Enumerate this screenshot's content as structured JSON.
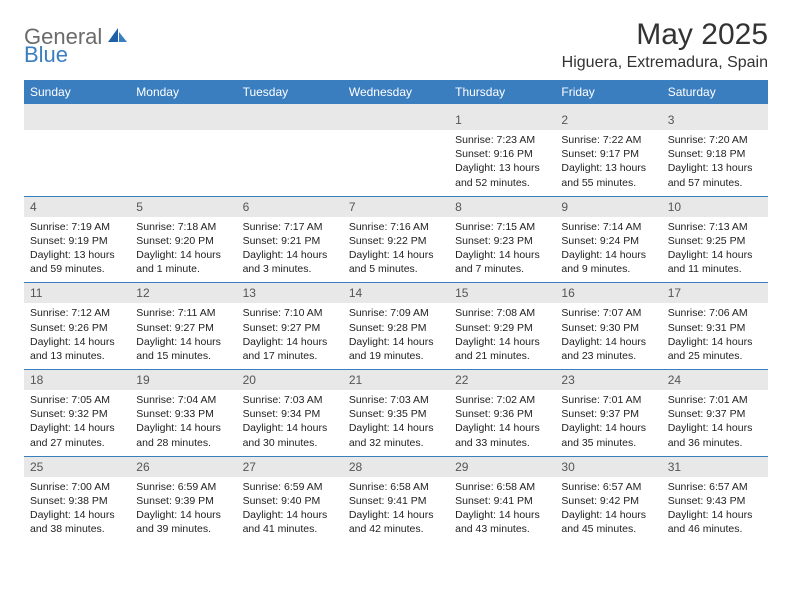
{
  "brand": {
    "general": "General",
    "blue": "Blue"
  },
  "title": "May 2025",
  "location": "Higuera, Extremadura, Spain",
  "colors": {
    "header_bg": "#3a7ebf",
    "header_text": "#ffffff",
    "daynum_bg": "#e8e8e8",
    "daynum_text": "#555555",
    "body_text": "#222222",
    "logo_gray": "#6b6b6b",
    "logo_blue": "#3a7ebf",
    "row_divider": "#3a7ebf"
  },
  "typography": {
    "title_fontsize": 30,
    "location_fontsize": 16,
    "weekday_fontsize": 12,
    "daynum_fontsize": 12,
    "detail_fontsize": 10.5
  },
  "weekdays": [
    "Sunday",
    "Monday",
    "Tuesday",
    "Wednesday",
    "Thursday",
    "Friday",
    "Saturday"
  ],
  "weeks": [
    [
      null,
      null,
      null,
      null,
      {
        "n": "1",
        "sr": "Sunrise: 7:23 AM",
        "ss": "Sunset: 9:16 PM",
        "d1": "Daylight: 13 hours",
        "d2": "and 52 minutes."
      },
      {
        "n": "2",
        "sr": "Sunrise: 7:22 AM",
        "ss": "Sunset: 9:17 PM",
        "d1": "Daylight: 13 hours",
        "d2": "and 55 minutes."
      },
      {
        "n": "3",
        "sr": "Sunrise: 7:20 AM",
        "ss": "Sunset: 9:18 PM",
        "d1": "Daylight: 13 hours",
        "d2": "and 57 minutes."
      }
    ],
    [
      {
        "n": "4",
        "sr": "Sunrise: 7:19 AM",
        "ss": "Sunset: 9:19 PM",
        "d1": "Daylight: 13 hours",
        "d2": "and 59 minutes."
      },
      {
        "n": "5",
        "sr": "Sunrise: 7:18 AM",
        "ss": "Sunset: 9:20 PM",
        "d1": "Daylight: 14 hours",
        "d2": "and 1 minute."
      },
      {
        "n": "6",
        "sr": "Sunrise: 7:17 AM",
        "ss": "Sunset: 9:21 PM",
        "d1": "Daylight: 14 hours",
        "d2": "and 3 minutes."
      },
      {
        "n": "7",
        "sr": "Sunrise: 7:16 AM",
        "ss": "Sunset: 9:22 PM",
        "d1": "Daylight: 14 hours",
        "d2": "and 5 minutes."
      },
      {
        "n": "8",
        "sr": "Sunrise: 7:15 AM",
        "ss": "Sunset: 9:23 PM",
        "d1": "Daylight: 14 hours",
        "d2": "and 7 minutes."
      },
      {
        "n": "9",
        "sr": "Sunrise: 7:14 AM",
        "ss": "Sunset: 9:24 PM",
        "d1": "Daylight: 14 hours",
        "d2": "and 9 minutes."
      },
      {
        "n": "10",
        "sr": "Sunrise: 7:13 AM",
        "ss": "Sunset: 9:25 PM",
        "d1": "Daylight: 14 hours",
        "d2": "and 11 minutes."
      }
    ],
    [
      {
        "n": "11",
        "sr": "Sunrise: 7:12 AM",
        "ss": "Sunset: 9:26 PM",
        "d1": "Daylight: 14 hours",
        "d2": "and 13 minutes."
      },
      {
        "n": "12",
        "sr": "Sunrise: 7:11 AM",
        "ss": "Sunset: 9:27 PM",
        "d1": "Daylight: 14 hours",
        "d2": "and 15 minutes."
      },
      {
        "n": "13",
        "sr": "Sunrise: 7:10 AM",
        "ss": "Sunset: 9:27 PM",
        "d1": "Daylight: 14 hours",
        "d2": "and 17 minutes."
      },
      {
        "n": "14",
        "sr": "Sunrise: 7:09 AM",
        "ss": "Sunset: 9:28 PM",
        "d1": "Daylight: 14 hours",
        "d2": "and 19 minutes."
      },
      {
        "n": "15",
        "sr": "Sunrise: 7:08 AM",
        "ss": "Sunset: 9:29 PM",
        "d1": "Daylight: 14 hours",
        "d2": "and 21 minutes."
      },
      {
        "n": "16",
        "sr": "Sunrise: 7:07 AM",
        "ss": "Sunset: 9:30 PM",
        "d1": "Daylight: 14 hours",
        "d2": "and 23 minutes."
      },
      {
        "n": "17",
        "sr": "Sunrise: 7:06 AM",
        "ss": "Sunset: 9:31 PM",
        "d1": "Daylight: 14 hours",
        "d2": "and 25 minutes."
      }
    ],
    [
      {
        "n": "18",
        "sr": "Sunrise: 7:05 AM",
        "ss": "Sunset: 9:32 PM",
        "d1": "Daylight: 14 hours",
        "d2": "and 27 minutes."
      },
      {
        "n": "19",
        "sr": "Sunrise: 7:04 AM",
        "ss": "Sunset: 9:33 PM",
        "d1": "Daylight: 14 hours",
        "d2": "and 28 minutes."
      },
      {
        "n": "20",
        "sr": "Sunrise: 7:03 AM",
        "ss": "Sunset: 9:34 PM",
        "d1": "Daylight: 14 hours",
        "d2": "and 30 minutes."
      },
      {
        "n": "21",
        "sr": "Sunrise: 7:03 AM",
        "ss": "Sunset: 9:35 PM",
        "d1": "Daylight: 14 hours",
        "d2": "and 32 minutes."
      },
      {
        "n": "22",
        "sr": "Sunrise: 7:02 AM",
        "ss": "Sunset: 9:36 PM",
        "d1": "Daylight: 14 hours",
        "d2": "and 33 minutes."
      },
      {
        "n": "23",
        "sr": "Sunrise: 7:01 AM",
        "ss": "Sunset: 9:37 PM",
        "d1": "Daylight: 14 hours",
        "d2": "and 35 minutes."
      },
      {
        "n": "24",
        "sr": "Sunrise: 7:01 AM",
        "ss": "Sunset: 9:37 PM",
        "d1": "Daylight: 14 hours",
        "d2": "and 36 minutes."
      }
    ],
    [
      {
        "n": "25",
        "sr": "Sunrise: 7:00 AM",
        "ss": "Sunset: 9:38 PM",
        "d1": "Daylight: 14 hours",
        "d2": "and 38 minutes."
      },
      {
        "n": "26",
        "sr": "Sunrise: 6:59 AM",
        "ss": "Sunset: 9:39 PM",
        "d1": "Daylight: 14 hours",
        "d2": "and 39 minutes."
      },
      {
        "n": "27",
        "sr": "Sunrise: 6:59 AM",
        "ss": "Sunset: 9:40 PM",
        "d1": "Daylight: 14 hours",
        "d2": "and 41 minutes."
      },
      {
        "n": "28",
        "sr": "Sunrise: 6:58 AM",
        "ss": "Sunset: 9:41 PM",
        "d1": "Daylight: 14 hours",
        "d2": "and 42 minutes."
      },
      {
        "n": "29",
        "sr": "Sunrise: 6:58 AM",
        "ss": "Sunset: 9:41 PM",
        "d1": "Daylight: 14 hours",
        "d2": "and 43 minutes."
      },
      {
        "n": "30",
        "sr": "Sunrise: 6:57 AM",
        "ss": "Sunset: 9:42 PM",
        "d1": "Daylight: 14 hours",
        "d2": "and 45 minutes."
      },
      {
        "n": "31",
        "sr": "Sunrise: 6:57 AM",
        "ss": "Sunset: 9:43 PM",
        "d1": "Daylight: 14 hours",
        "d2": "and 46 minutes."
      }
    ]
  ]
}
